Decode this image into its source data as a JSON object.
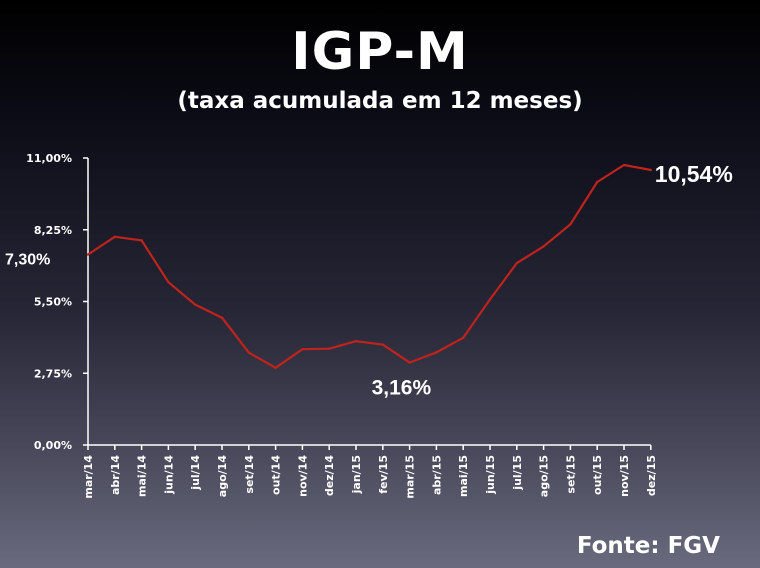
{
  "title": "IGP-M",
  "subtitle": "(taxa acumulada em 12 meses)",
  "source": "Fonte: FGV",
  "colors": {
    "line": "#c0231b",
    "axis": "#ffffff"
  },
  "chart_data": {
    "type": "line",
    "title": "IGP-M",
    "subtitle": "(taxa acumulada em 12 meses)",
    "categories": [
      "mar/14",
      "abr/14",
      "mai/14",
      "jun/14",
      "jul/14",
      "ago/14",
      "set/14",
      "out/14",
      "nov/14",
      "dez/14",
      "jan/15",
      "fev/15",
      "mar/15",
      "abr/15",
      "mai/15",
      "jun/15",
      "jul/15",
      "ago/15",
      "set/15",
      "out/15",
      "nov/15",
      "dez/15"
    ],
    "series": [
      {
        "values": [
          7.3,
          7.98,
          7.84,
          6.24,
          5.38,
          4.88,
          3.54,
          2.96,
          3.67,
          3.69,
          3.98,
          3.85,
          3.16,
          3.55,
          4.11,
          5.58,
          6.97,
          7.61,
          8.46,
          10.08,
          10.73,
          10.54
        ]
      }
    ],
    "yticks": [
      "0,00%",
      "2,75%",
      "5,50%",
      "8,25%",
      "11,00%"
    ],
    "ylim": [
      0,
      11
    ],
    "annotations": [
      {
        "text": "7,30%",
        "index": 0
      },
      {
        "text": "3,16%",
        "index": 12
      },
      {
        "text": "10,54%",
        "index": 21
      }
    ],
    "grid": false,
    "legend": "none"
  }
}
